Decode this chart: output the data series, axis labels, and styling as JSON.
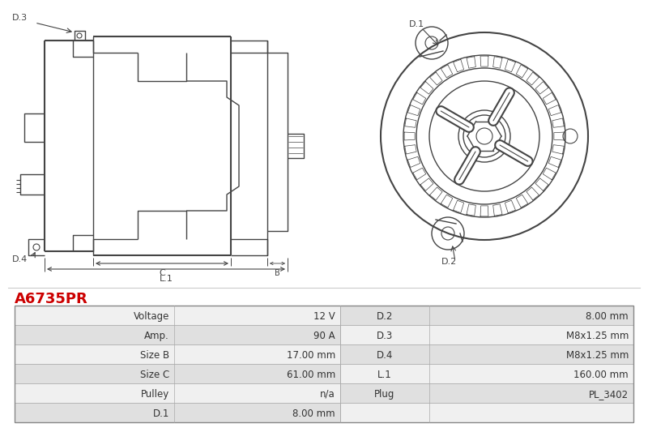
{
  "title": "A6735PR",
  "title_color": "#cc0000",
  "bg_color": "#ffffff",
  "table_rows": [
    [
      "Voltage",
      "12 V",
      "D.2",
      "8.00 mm"
    ],
    [
      "Amp.",
      "90 A",
      "D.3",
      "M8x1.25 mm"
    ],
    [
      "Size B",
      "17.00 mm",
      "D.4",
      "M8x1.25 mm"
    ],
    [
      "Size C",
      "61.00 mm",
      "L.1",
      "160.00 mm"
    ],
    [
      "Pulley",
      "n/a",
      "Plug",
      "PL_3402"
    ],
    [
      "D.1",
      "8.00 mm",
      "",
      ""
    ]
  ],
  "line_color": "#444444",
  "table_row_bg1": "#f0f0f0",
  "table_row_bg2": "#e0e0e0",
  "table_border_color": "#aaaaaa"
}
